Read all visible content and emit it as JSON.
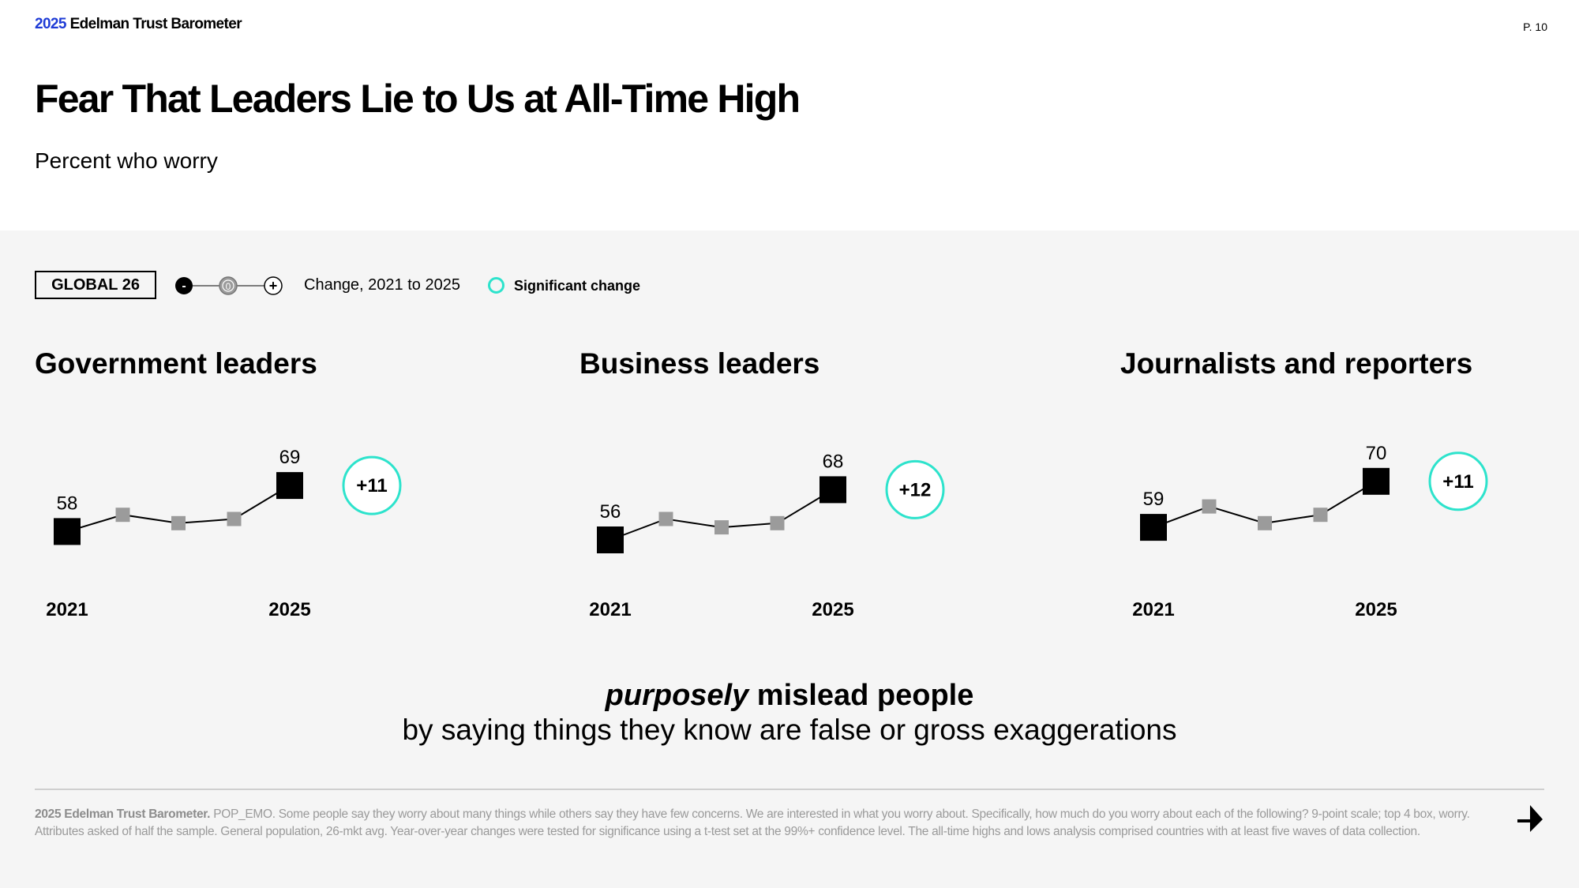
{
  "header": {
    "brand_year": "2025",
    "brand_name": "Edelman Trust Barometer",
    "page_number": "P. 10"
  },
  "title": "Fear That Leaders Lie to Us at All-Time High",
  "subtitle": "Percent who worry",
  "legend": {
    "global_label": "GLOBAL 26",
    "scale_minus": "-",
    "scale_zero": "0",
    "scale_plus": "+",
    "change_label": "Change, 2021 to 2025",
    "significant_label": "Significant change",
    "accent_color": "#2de3cc"
  },
  "chart_data": [
    {
      "type": "line",
      "title": "Government leaders",
      "x": [
        "2021",
        "2022",
        "2023",
        "2024",
        "2025"
      ],
      "values": [
        58,
        62,
        60,
        61,
        69
      ],
      "labeled_values": {
        "2021": "58",
        "2025": "69"
      },
      "x_tick_labels": [
        "2021",
        "2025"
      ],
      "change": "+11",
      "significant": true
    },
    {
      "type": "line",
      "title": "Business leaders",
      "x": [
        "2021",
        "2022",
        "2023",
        "2024",
        "2025"
      ],
      "values": [
        56,
        61,
        59,
        60,
        68
      ],
      "labeled_values": {
        "2021": "56",
        "2025": "68"
      },
      "x_tick_labels": [
        "2021",
        "2025"
      ],
      "change": "+12",
      "significant": true
    },
    {
      "type": "line",
      "title": "Journalists and reporters",
      "x": [
        "2021",
        "2022",
        "2023",
        "2024",
        "2025"
      ],
      "values": [
        59,
        64,
        60,
        62,
        70
      ],
      "labeled_values": {
        "2021": "59",
        "2025": "70"
      },
      "x_tick_labels": [
        "2021",
        "2025"
      ],
      "change": "+11",
      "significant": true
    }
  ],
  "tagline": {
    "emphasis": "purposely",
    "rest": " mislead people",
    "line2": "by saying things they know are false or gross exaggerations"
  },
  "footnote": {
    "source": "2025 Edelman Trust Barometer.",
    "text": " POP_EMO. Some people say they worry about many things while others say they have few concerns. We are interested in what you worry about. Specifically, how much do you worry about each of the following? 9-point scale; top 4 box, worry. Attributes asked of half the sample. General population, 26-mkt avg. Year-over-year changes were tested for significance using a t-test set at the 99%+ confidence level. The all-time highs and lows analysis comprised countries with at least five waves of data collection."
  },
  "colors": {
    "endpoint": "#000000",
    "midpoint": "#9b9b9b",
    "panel_bg": "#f5f5f5",
    "brand_blue": "#1f3cd6"
  },
  "icons": {
    "next": "next-arrow-icon"
  }
}
